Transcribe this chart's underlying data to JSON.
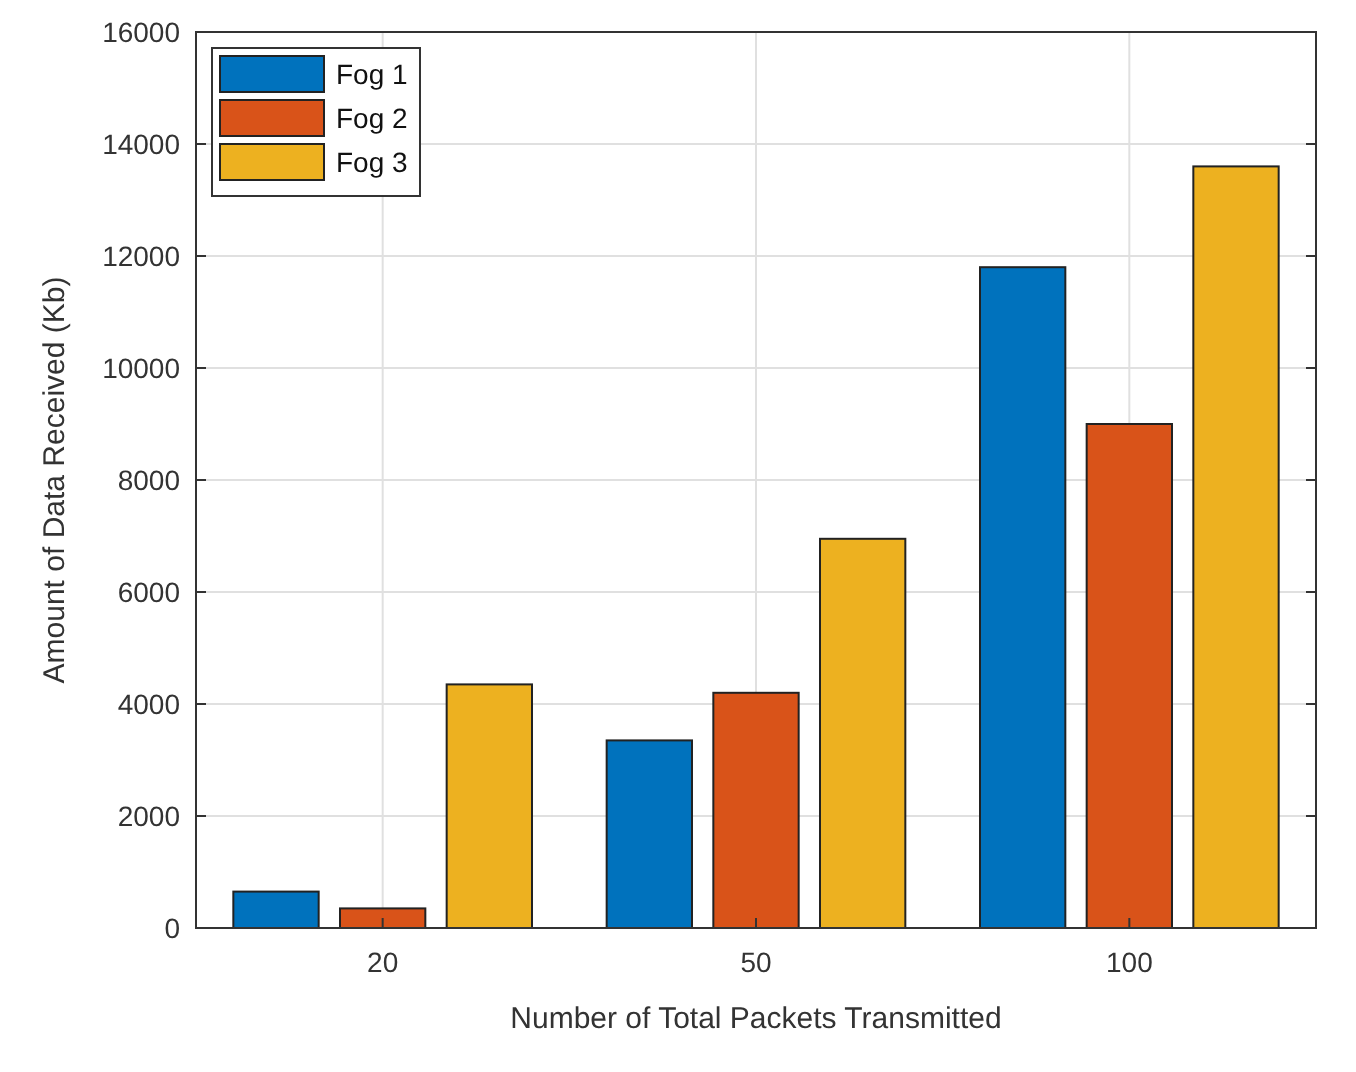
{
  "chart_data": {
    "type": "bar",
    "xlabel": "Number of Total Packets Transmitted",
    "ylabel": "Amount of Data Received (Kb)",
    "categories": [
      "20",
      "50",
      "100"
    ],
    "series": [
      {
        "name": "Fog 1",
        "color": "#0072bd",
        "values": [
          650,
          3350,
          11800
        ]
      },
      {
        "name": "Fog 2",
        "color": "#d95319",
        "values": [
          350,
          4200,
          9000
        ]
      },
      {
        "name": "Fog 3",
        "color": "#edb120",
        "values": [
          4350,
          6950,
          13600
        ]
      }
    ],
    "ylim": [
      0,
      16000
    ],
    "yticks": [
      0,
      2000,
      4000,
      6000,
      8000,
      10000,
      12000,
      14000,
      16000
    ],
    "grid": true,
    "legend": "top left"
  }
}
